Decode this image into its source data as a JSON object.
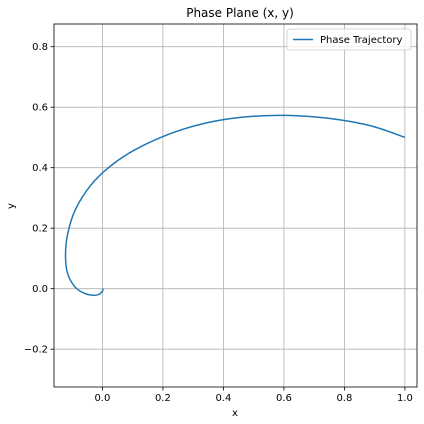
{
  "chart_data": {
    "type": "line",
    "title": "Phase Plane (x, y)",
    "xlabel": "x",
    "ylabel": "y",
    "xlim": [
      -0.16,
      1.04
    ],
    "ylim": [
      -0.325,
      0.875
    ],
    "x_ticks": [
      0.0,
      0.2,
      0.4,
      0.6,
      0.8,
      1.0
    ],
    "x_tick_labels": [
      "0.0",
      "0.2",
      "0.4",
      "0.6",
      "0.8",
      "1.0"
    ],
    "y_ticks": [
      -0.2,
      0.0,
      0.2,
      0.4,
      0.6,
      0.8
    ],
    "y_tick_labels": [
      "−0.2",
      "0.0",
      "0.2",
      "0.4",
      "0.6",
      "0.8"
    ],
    "grid": true,
    "legend_position": "top-right",
    "series": [
      {
        "name": "Phase Trajectory",
        "color": "#1f77b4",
        "points": [
          [
            1.0,
            0.5
          ],
          [
            0.9,
            0.535
          ],
          [
            0.8,
            0.556
          ],
          [
            0.7,
            0.568
          ],
          [
            0.6,
            0.573
          ],
          [
            0.5,
            0.57
          ],
          [
            0.4,
            0.559
          ],
          [
            0.3,
            0.537
          ],
          [
            0.2,
            0.503
          ],
          [
            0.1,
            0.455
          ],
          [
            0.02,
            0.4
          ],
          [
            -0.04,
            0.34
          ],
          [
            -0.09,
            0.26
          ],
          [
            -0.115,
            0.18
          ],
          [
            -0.122,
            0.11
          ],
          [
            -0.115,
            0.05
          ],
          [
            -0.09,
            0.005
          ],
          [
            -0.06,
            -0.015
          ],
          [
            -0.03,
            -0.022
          ],
          [
            -0.01,
            -0.018
          ],
          [
            0.0,
            -0.008
          ],
          [
            0.002,
            0.0
          ]
        ]
      }
    ]
  }
}
